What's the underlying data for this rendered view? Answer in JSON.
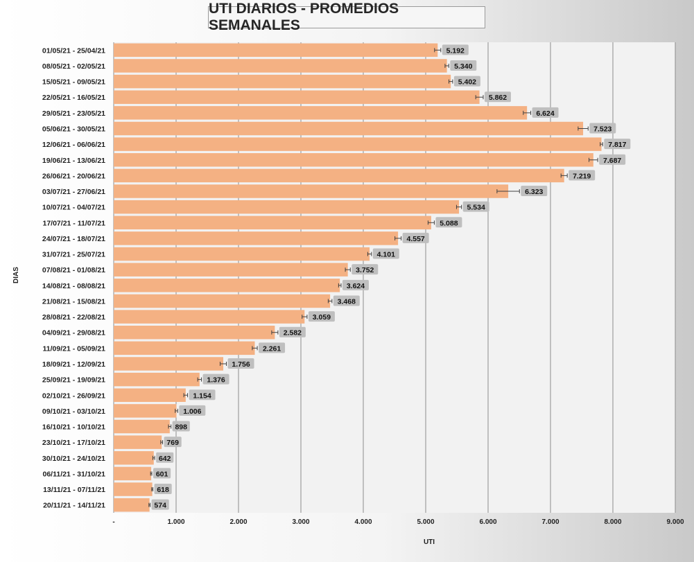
{
  "chart_data": {
    "type": "bar",
    "orientation": "horizontal",
    "title": "UTI DIARIOS - PROMEDIOS SEMANALES",
    "xlabel": "UTI",
    "ylabel": "DIAS",
    "xlim": [
      0,
      9000
    ],
    "xticks": [
      0,
      1000,
      2000,
      3000,
      4000,
      5000,
      6000,
      7000,
      8000,
      9000
    ],
    "xtick_labels": [
      "-",
      "1.000",
      "2.000",
      "3.000",
      "4.000",
      "5.000",
      "6.000",
      "7.000",
      "8.000",
      "9.000"
    ],
    "grid": true,
    "error_bars": true,
    "categories": [
      "01/05/21 - 25/04/21",
      "08/05/21 - 02/05/21",
      "15/05/21 - 09/05/21",
      "22/05/21 - 16/05/21",
      "29/05/21 - 23/05/21",
      "05/06/21 - 30/05/21",
      "12/06/21 - 06/06/21",
      "19/06/21 - 13/06/21",
      "26/06/21 - 20/06/21",
      "03/07/21 - 27/06/21",
      "10/07/21 - 04/07/21",
      "17/07/21 - 11/07/21",
      "24/07/21 - 18/07/21",
      "31/07/21 - 25/07/21",
      "07/08/21 - 01/08/21",
      "14/08/21 - 08/08/21",
      "21/08/21 - 15/08/21",
      "28/08/21 - 22/08/21",
      "04/09/21 - 29/08/21",
      "11/09/21 - 05/09/21",
      "18/09/21 - 12/09/21",
      "25/09/21 - 19/09/21",
      "02/10/21 - 26/09/21",
      "09/10/21 - 03/10/21",
      "16/10/21 - 10/10/21",
      "23/10/21 - 17/10/21",
      "30/10/21 - 24/10/21",
      "06/11/21 - 31/10/21",
      "13/11/21 - 07/11/21",
      "20/11/21 - 14/11/21"
    ],
    "values": [
      5192,
      5340,
      5402,
      5862,
      6624,
      7523,
      7817,
      7687,
      7219,
      6323,
      5534,
      5088,
      4557,
      4101,
      3752,
      3624,
      3468,
      3059,
      2582,
      2261,
      1756,
      1376,
      1154,
      1006,
      898,
      769,
      642,
      601,
      618,
      574
    ],
    "value_labels": [
      "5.192",
      "5.340",
      "5.402",
      "5.862",
      "6.624",
      "7.523",
      "7.817",
      "7.687",
      "7.219",
      "6.323",
      "5.534",
      "5.088",
      "4.557",
      "4.101",
      "3.752",
      "3.624",
      "3.468",
      "3.059",
      "2.582",
      "2.261",
      "1.756",
      "1.376",
      "1.154",
      "1.006",
      "898",
      "769",
      "642",
      "601",
      "618",
      "574"
    ],
    "errors": [
      50,
      30,
      30,
      60,
      60,
      80,
      20,
      70,
      50,
      180,
      40,
      50,
      50,
      30,
      40,
      20,
      30,
      40,
      50,
      40,
      50,
      30,
      30,
      20,
      20,
      15,
      15,
      10,
      10,
      10
    ],
    "colors": {
      "bar": "#f4b183",
      "plot_bg": "#f2f2f2",
      "grid": "#8c8c8c",
      "label_box": "#bfbfbf",
      "error_bar": "#404040"
    }
  }
}
